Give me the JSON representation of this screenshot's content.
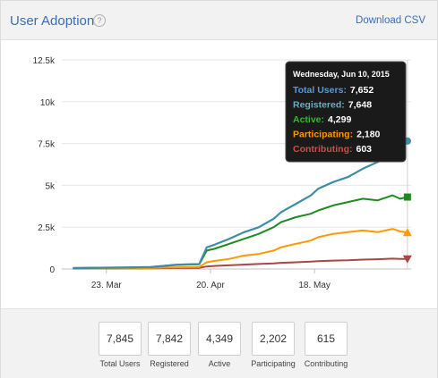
{
  "header": {
    "title": "User Adoption",
    "help_icon": "question-circle-icon",
    "help_glyph": "?",
    "download_label": "Download CSV"
  },
  "chart_data": {
    "type": "line",
    "y_ticks": [
      "0",
      "2.5k",
      "5k",
      "7.5k",
      "10k",
      "12.5k"
    ],
    "y_tick_values": [
      0,
      2500,
      5000,
      7500,
      10000,
      12500
    ],
    "ylim": [
      0,
      12500
    ],
    "x_ticks": [
      "23. Mar",
      "20. Apr",
      "18. May"
    ],
    "x_tick_days": [
      9,
      37,
      65
    ],
    "xlim_days": [
      -3,
      91
    ],
    "grid": true,
    "legend": "tooltip",
    "x": [
      0,
      7,
      14,
      21,
      28,
      34,
      36,
      38,
      42,
      46,
      50,
      54,
      56,
      60,
      64,
      66,
      70,
      74,
      78,
      82,
      86,
      88,
      90
    ],
    "series": [
      {
        "name": "Total Users",
        "color": "#3d8ca8",
        "marker": "circle",
        "values": [
          60,
          80,
          90,
          120,
          260,
          300,
          1300,
          1450,
          1800,
          2200,
          2500,
          3000,
          3400,
          3900,
          4400,
          4800,
          5200,
          5500,
          6000,
          6400,
          6900,
          7200,
          7652
        ]
      },
      {
        "name": "Registered",
        "color": "#5b9faa",
        "marker": "circle",
        "values": [
          60,
          80,
          90,
          120,
          260,
          300,
          1290,
          1440,
          1790,
          2190,
          2490,
          2990,
          3390,
          3890,
          4390,
          4790,
          5190,
          5490,
          5990,
          6390,
          6890,
          7190,
          7648
        ]
      },
      {
        "name": "Active",
        "color": "#1f8a1f",
        "marker": "square",
        "values": [
          50,
          70,
          80,
          110,
          240,
          280,
          1100,
          1200,
          1500,
          1800,
          2100,
          2500,
          2800,
          3100,
          3300,
          3500,
          3800,
          4000,
          4200,
          4100,
          4400,
          4200,
          4299
        ]
      },
      {
        "name": "Participating",
        "color": "#ff9900",
        "marker": "triangle",
        "values": [
          30,
          40,
          50,
          60,
          100,
          120,
          400,
          480,
          600,
          800,
          900,
          1100,
          1300,
          1500,
          1700,
          1900,
          2100,
          2200,
          2300,
          2200,
          2400,
          2250,
          2180
        ]
      },
      {
        "name": "Contributing",
        "color": "#aa4643",
        "marker": "triangle-down",
        "values": [
          20,
          25,
          30,
          40,
          60,
          70,
          150,
          180,
          220,
          260,
          300,
          330,
          370,
          400,
          440,
          470,
          500,
          520,
          560,
          580,
          620,
          600,
          603
        ]
      }
    ],
    "tooltip": {
      "date": "Wednesday, Jun 10, 2015",
      "rows": [
        {
          "label": "Total Users:",
          "value": "7,652",
          "color": "#4f9be8"
        },
        {
          "label": "Registered:",
          "value": "7,648",
          "color": "#5fb3bf"
        },
        {
          "label": "Active:",
          "value": "4,299",
          "color": "#34b934"
        },
        {
          "label": "Participating:",
          "value": "2,180",
          "color": "#ff9900"
        },
        {
          "label": "Contributing:",
          "value": "603",
          "color": "#c9504d"
        }
      ]
    }
  },
  "summary": [
    {
      "value": "7,845",
      "label": "Total Users"
    },
    {
      "value": "7,842",
      "label": "Registered"
    },
    {
      "value": "4,349",
      "label": "Active"
    },
    {
      "value": "2,202",
      "label": "Participating"
    },
    {
      "value": "615",
      "label": "Contributing"
    }
  ]
}
